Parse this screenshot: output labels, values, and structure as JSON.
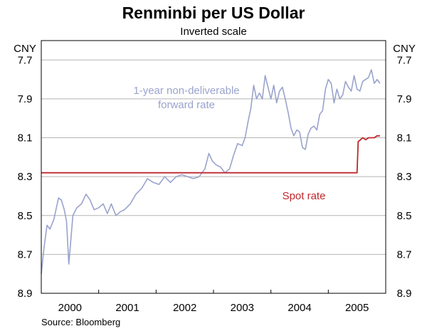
{
  "chart_data": {
    "type": "line",
    "title": "Renminbi per US Dollar",
    "subtitle": "Inverted scale",
    "ylabel_left": "CNY",
    "ylabel_right": "CNY",
    "y_inverted": true,
    "ylim": [
      7.6,
      8.9
    ],
    "yticks": [
      "7.7",
      "7.9",
      "8.1",
      "8.3",
      "8.5",
      "8.7",
      "8.9"
    ],
    "ytick_values": [
      7.7,
      7.9,
      8.1,
      8.3,
      8.5,
      8.7,
      8.9
    ],
    "xlim": [
      1999.5,
      2005.5
    ],
    "xticks": [
      "2000",
      "2001",
      "2002",
      "2003",
      "2004",
      "2005"
    ],
    "xtick_values": [
      2000,
      2001,
      2002,
      2003,
      2004,
      2005
    ],
    "source": "Source: Bloomberg",
    "series": [
      {
        "name": "1-year non-deliverable forward rate",
        "label_lines": [
          "1-year non-deliverable",
          "forward rate"
        ],
        "color": "#9aa3cc",
        "x": [
          1999.5,
          1999.55,
          1999.6,
          1999.65,
          1999.72,
          1999.8,
          1999.85,
          1999.9,
          1999.94,
          1999.98,
          2000.05,
          2000.12,
          2000.2,
          2000.28,
          2000.35,
          2000.42,
          2000.5,
          2000.58,
          2000.65,
          2000.72,
          2000.8,
          2000.88,
          2000.95,
          2001.05,
          2001.15,
          2001.25,
          2001.35,
          2001.45,
          2001.55,
          2001.65,
          2001.75,
          2001.85,
          2001.95,
          2002.05,
          2002.15,
          2002.25,
          2002.35,
          2002.42,
          2002.48,
          2002.55,
          2002.62,
          2002.7,
          2002.78,
          2002.85,
          2002.92,
          2003.0,
          2003.05,
          2003.1,
          2003.15,
          2003.2,
          2003.25,
          2003.3,
          2003.35,
          2003.4,
          2003.45,
          2003.5,
          2003.55,
          2003.6,
          2003.65,
          2003.7,
          2003.75,
          2003.8,
          2003.85,
          2003.9,
          2003.95,
          2004.0,
          2004.05,
          2004.1,
          2004.15,
          2004.2,
          2004.25,
          2004.3,
          2004.35,
          2004.4,
          2004.45,
          2004.5,
          2004.55,
          2004.6,
          2004.65,
          2004.7,
          2004.75,
          2004.8,
          2004.85,
          2004.9,
          2004.95,
          2005.0,
          2005.05,
          2005.1,
          2005.15,
          2005.2,
          2005.25,
          2005.3,
          2005.35,
          2005.4
        ],
        "values": [
          8.8,
          8.66,
          8.55,
          8.57,
          8.52,
          8.41,
          8.42,
          8.47,
          8.53,
          8.75,
          8.5,
          8.46,
          8.44,
          8.39,
          8.42,
          8.47,
          8.46,
          8.44,
          8.49,
          8.44,
          8.5,
          8.48,
          8.47,
          8.44,
          8.39,
          8.36,
          8.31,
          8.33,
          8.34,
          8.3,
          8.33,
          8.3,
          8.29,
          8.3,
          8.31,
          8.3,
          8.26,
          8.18,
          8.22,
          8.24,
          8.25,
          8.28,
          8.26,
          8.19,
          8.13,
          8.14,
          8.1,
          8.02,
          7.95,
          7.83,
          7.9,
          7.87,
          7.9,
          7.78,
          7.84,
          7.9,
          7.83,
          7.92,
          7.86,
          7.84,
          7.9,
          7.97,
          8.05,
          8.09,
          8.06,
          8.07,
          8.15,
          8.16,
          8.08,
          8.05,
          8.04,
          8.06,
          7.98,
          7.96,
          7.85,
          7.8,
          7.82,
          7.92,
          7.85,
          7.9,
          7.88,
          7.81,
          7.84,
          7.86,
          7.78,
          7.85,
          7.86,
          7.81,
          7.8,
          7.79,
          7.75,
          7.82,
          7.8,
          7.82
        ]
      },
      {
        "name": "Spot rate",
        "label_lines": [
          "Spot rate"
        ],
        "color": "#c0272d",
        "x": [
          1999.5,
          2000.0,
          2001.0,
          2002.0,
          2003.0,
          2004.0,
          2005.0,
          2005.02,
          2005.06,
          2005.1,
          2005.15,
          2005.2,
          2005.25,
          2005.3,
          2005.35,
          2005.4
        ],
        "values": [
          8.28,
          8.28,
          8.28,
          8.28,
          8.28,
          8.28,
          8.28,
          8.12,
          8.11,
          8.1,
          8.11,
          8.1,
          8.1,
          8.1,
          8.09,
          8.09
        ]
      }
    ]
  }
}
